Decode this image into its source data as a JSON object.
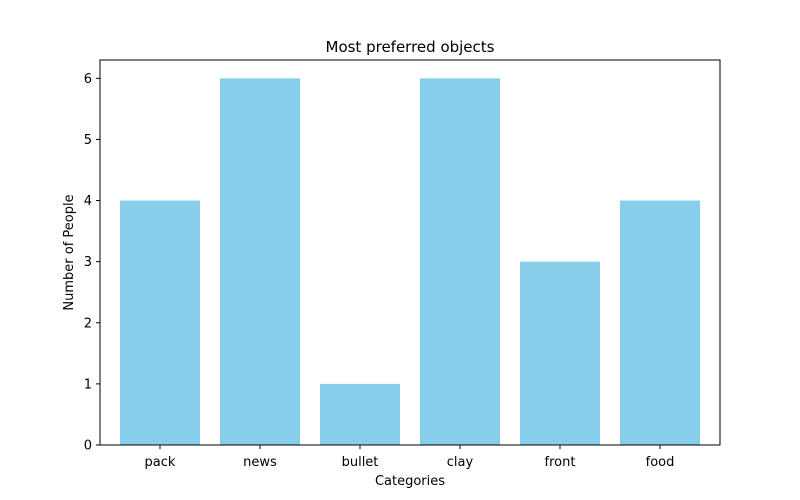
{
  "chart_data": {
    "type": "bar",
    "title": "Most preferred objects",
    "xlabel": "Categories",
    "ylabel": "Number of People",
    "categories": [
      "pack",
      "news",
      "bullet",
      "clay",
      "front",
      "food"
    ],
    "values": [
      4,
      6,
      1,
      6,
      3,
      4
    ],
    "ylim": [
      0,
      6.3
    ],
    "yticks": [
      0,
      1,
      2,
      3,
      4,
      5,
      6
    ],
    "bar_color": "#87ceeb",
    "grid": false,
    "legend": "none"
  }
}
